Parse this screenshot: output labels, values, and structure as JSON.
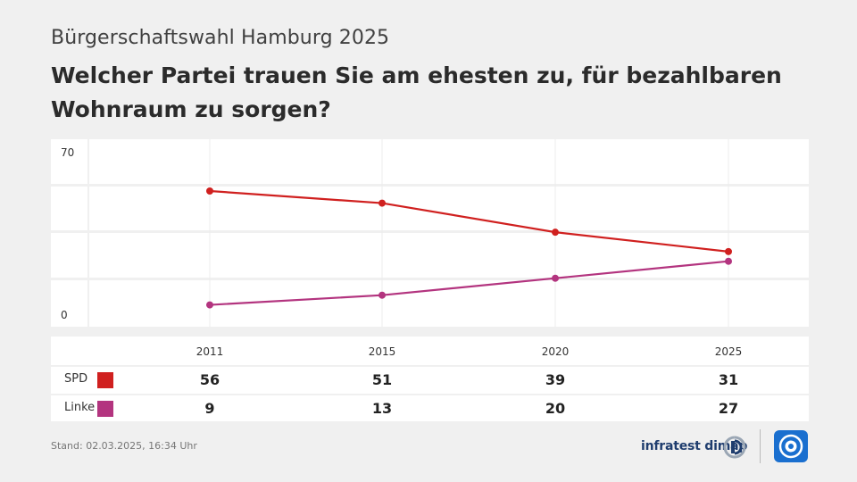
{
  "header": {
    "subtitle": "Bürgerschaftswahl Hamburg 2025",
    "title": "Welcher Partei trauen Sie am ehesten zu, für bezahlbaren Wohnraum zu sorgen?"
  },
  "chart_data": {
    "type": "line",
    "x": [
      "2011",
      "2015",
      "2020",
      "2025"
    ],
    "ylim": [
      0,
      70
    ],
    "yticks": [
      "70",
      "0"
    ],
    "grid": true,
    "series": [
      {
        "name": "SPD",
        "color": "#d0201f",
        "values": [
          56,
          51,
          39,
          31
        ]
      },
      {
        "name": "Linke",
        "color": "#b3347f",
        "values": [
          9,
          13,
          20,
          27
        ]
      }
    ]
  },
  "footer": {
    "stand": "Stand:  02.03.2025, 16:34 Uhr",
    "brand": "infratest dimap"
  },
  "icons": {
    "brand_logo": "infratest-dimap-logo-icon",
    "ard_logo": "ard-logo-icon"
  }
}
